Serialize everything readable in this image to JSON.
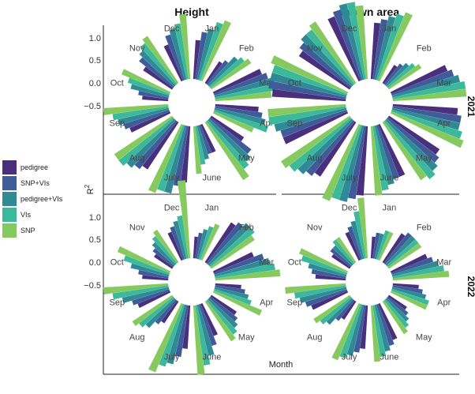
{
  "chart_data": {
    "type": "bar",
    "polar": true,
    "columns": [
      "Height",
      "Crown area"
    ],
    "rows": [
      "2021",
      "2022"
    ],
    "xlabel": "Month",
    "ylabel": "R²",
    "ylabel_base": "R",
    "ylabel_sup": "2",
    "yticks": [
      "1.0",
      "0.5",
      "0.0",
      "−0.5"
    ],
    "ylim": [
      -1.0,
      1.0
    ],
    "months": [
      "Jan",
      "Feb",
      "Mar",
      "Apr",
      "May",
      "June",
      "July",
      "Aug",
      "Sep",
      "Oct",
      "Nov",
      "Dec"
    ],
    "series": [
      {
        "name": "pedigree",
        "color": "#4a2f7c"
      },
      {
        "name": "SNP+VIs",
        "color": "#3e5b9a"
      },
      {
        "name": "pedigree+VIs",
        "color": "#2f8a95"
      },
      {
        "name": "VIs",
        "color": "#3cb89a"
      },
      {
        "name": "SNP",
        "color": "#86c95f"
      }
    ],
    "panels": [
      {
        "column": "Height",
        "row": "2021",
        "values": [
          [
            -0.1,
            0.1,
            0.2,
            0.4,
            0.5
          ],
          [
            -0.4,
            -0.3,
            -0.1,
            0.0,
            0.1
          ],
          [
            0.2,
            0.3,
            0.4,
            0.4,
            0.3
          ],
          [
            0.0,
            0.1,
            0.2,
            0.3,
            0.0
          ],
          [
            -0.1,
            0.2,
            0.3,
            0.4,
            0.6
          ],
          [
            -0.3,
            -0.3,
            -0.2,
            -0.1,
            0.1
          ],
          [
            0.3,
            0.4,
            0.6,
            0.6,
            0.7
          ],
          [
            0.3,
            0.4,
            0.5,
            0.6,
            0.6
          ],
          [
            0.0,
            0.1,
            0.2,
            0.3,
            0.5
          ],
          [
            -0.4,
            -0.3,
            -0.1,
            0.0,
            0.2
          ],
          [
            -0.2,
            0.0,
            0.1,
            0.2,
            0.3
          ],
          [
            -0.1,
            0.1,
            0.2,
            0.3,
            0.5
          ]
        ]
      },
      {
        "column": "Crown area",
        "row": "2021",
        "values": [
          [
            0.3,
            0.4,
            0.5,
            0.6,
            0.7
          ],
          [
            -0.5,
            -0.4,
            -0.3,
            -0.2,
            -0.1
          ],
          [
            0.4,
            0.5,
            0.6,
            0.7,
            0.7
          ],
          [
            0.5,
            0.6,
            0.6,
            0.7,
            0.8
          ],
          [
            0.4,
            0.5,
            0.6,
            0.7,
            0.6
          ],
          [
            0.3,
            0.3,
            0.4,
            0.5,
            0.6
          ],
          [
            0.6,
            0.7,
            0.8,
            0.8,
            0.9
          ],
          [
            0.5,
            0.6,
            0.7,
            0.8,
            0.9
          ],
          [
            0.6,
            0.6,
            0.7,
            0.8,
            0.8
          ],
          [
            0.7,
            0.8,
            0.8,
            0.8,
            0.9
          ],
          [
            0.4,
            0.5,
            0.6,
            0.6,
            0.7
          ],
          [
            0.6,
            0.7,
            0.8,
            0.8,
            0.7
          ]
        ]
      },
      {
        "column": "Height",
        "row": "2022",
        "values": [
          [
            -0.5,
            -0.4,
            -0.3,
            -0.2,
            -0.1
          ],
          [
            0.1,
            0.2,
            0.3,
            0.3,
            0.2
          ],
          [
            0.0,
            0.2,
            0.3,
            0.4,
            0.5
          ],
          [
            -0.4,
            -0.3,
            -0.2,
            -0.1,
            0.2
          ],
          [
            -0.3,
            -0.2,
            -0.1,
            0.0,
            0.1
          ],
          [
            -0.2,
            0.0,
            0.2,
            0.4,
            0.6
          ],
          [
            0.0,
            0.2,
            0.4,
            0.5,
            0.7
          ],
          [
            -0.4,
            -0.3,
            -0.1,
            0.0,
            0.1
          ],
          [
            -0.2,
            -0.1,
            0.1,
            0.3,
            0.5
          ],
          [
            -0.4,
            -0.3,
            -0.1,
            0.1,
            0.3
          ],
          [
            -0.5,
            -0.4,
            -0.3,
            -0.2,
            -0.1
          ],
          [
            -0.3,
            -0.2,
            -0.1,
            0.0,
            0.8
          ]
        ]
      },
      {
        "column": "Crown area",
        "row": "2022",
        "values": [
          [
            -0.5,
            -0.4,
            -0.4,
            -0.3,
            -0.3
          ],
          [
            -0.2,
            -0.1,
            -0.1,
            -0.1,
            -0.1
          ],
          [
            -0.1,
            0.0,
            0.1,
            0.2,
            0.3
          ],
          [
            -0.4,
            -0.3,
            -0.2,
            -0.1,
            -0.1
          ],
          [
            -0.5,
            -0.4,
            -0.3,
            -0.2,
            -0.1
          ],
          [
            -0.1,
            0.0,
            0.1,
            0.2,
            0.3
          ],
          [
            0.0,
            0.1,
            0.2,
            0.3,
            0.4
          ],
          [
            -0.5,
            -0.4,
            -0.2,
            -0.1,
            0.0
          ],
          [
            -0.1,
            0.0,
            0.1,
            0.2,
            0.4
          ],
          [
            -0.3,
            -0.2,
            -0.1,
            0.1,
            0.2
          ],
          [
            -0.5,
            -0.4,
            -0.4,
            -0.3,
            -0.3
          ],
          [
            -0.3,
            -0.2,
            -0.1,
            0.1,
            0.4
          ]
        ]
      }
    ]
  }
}
